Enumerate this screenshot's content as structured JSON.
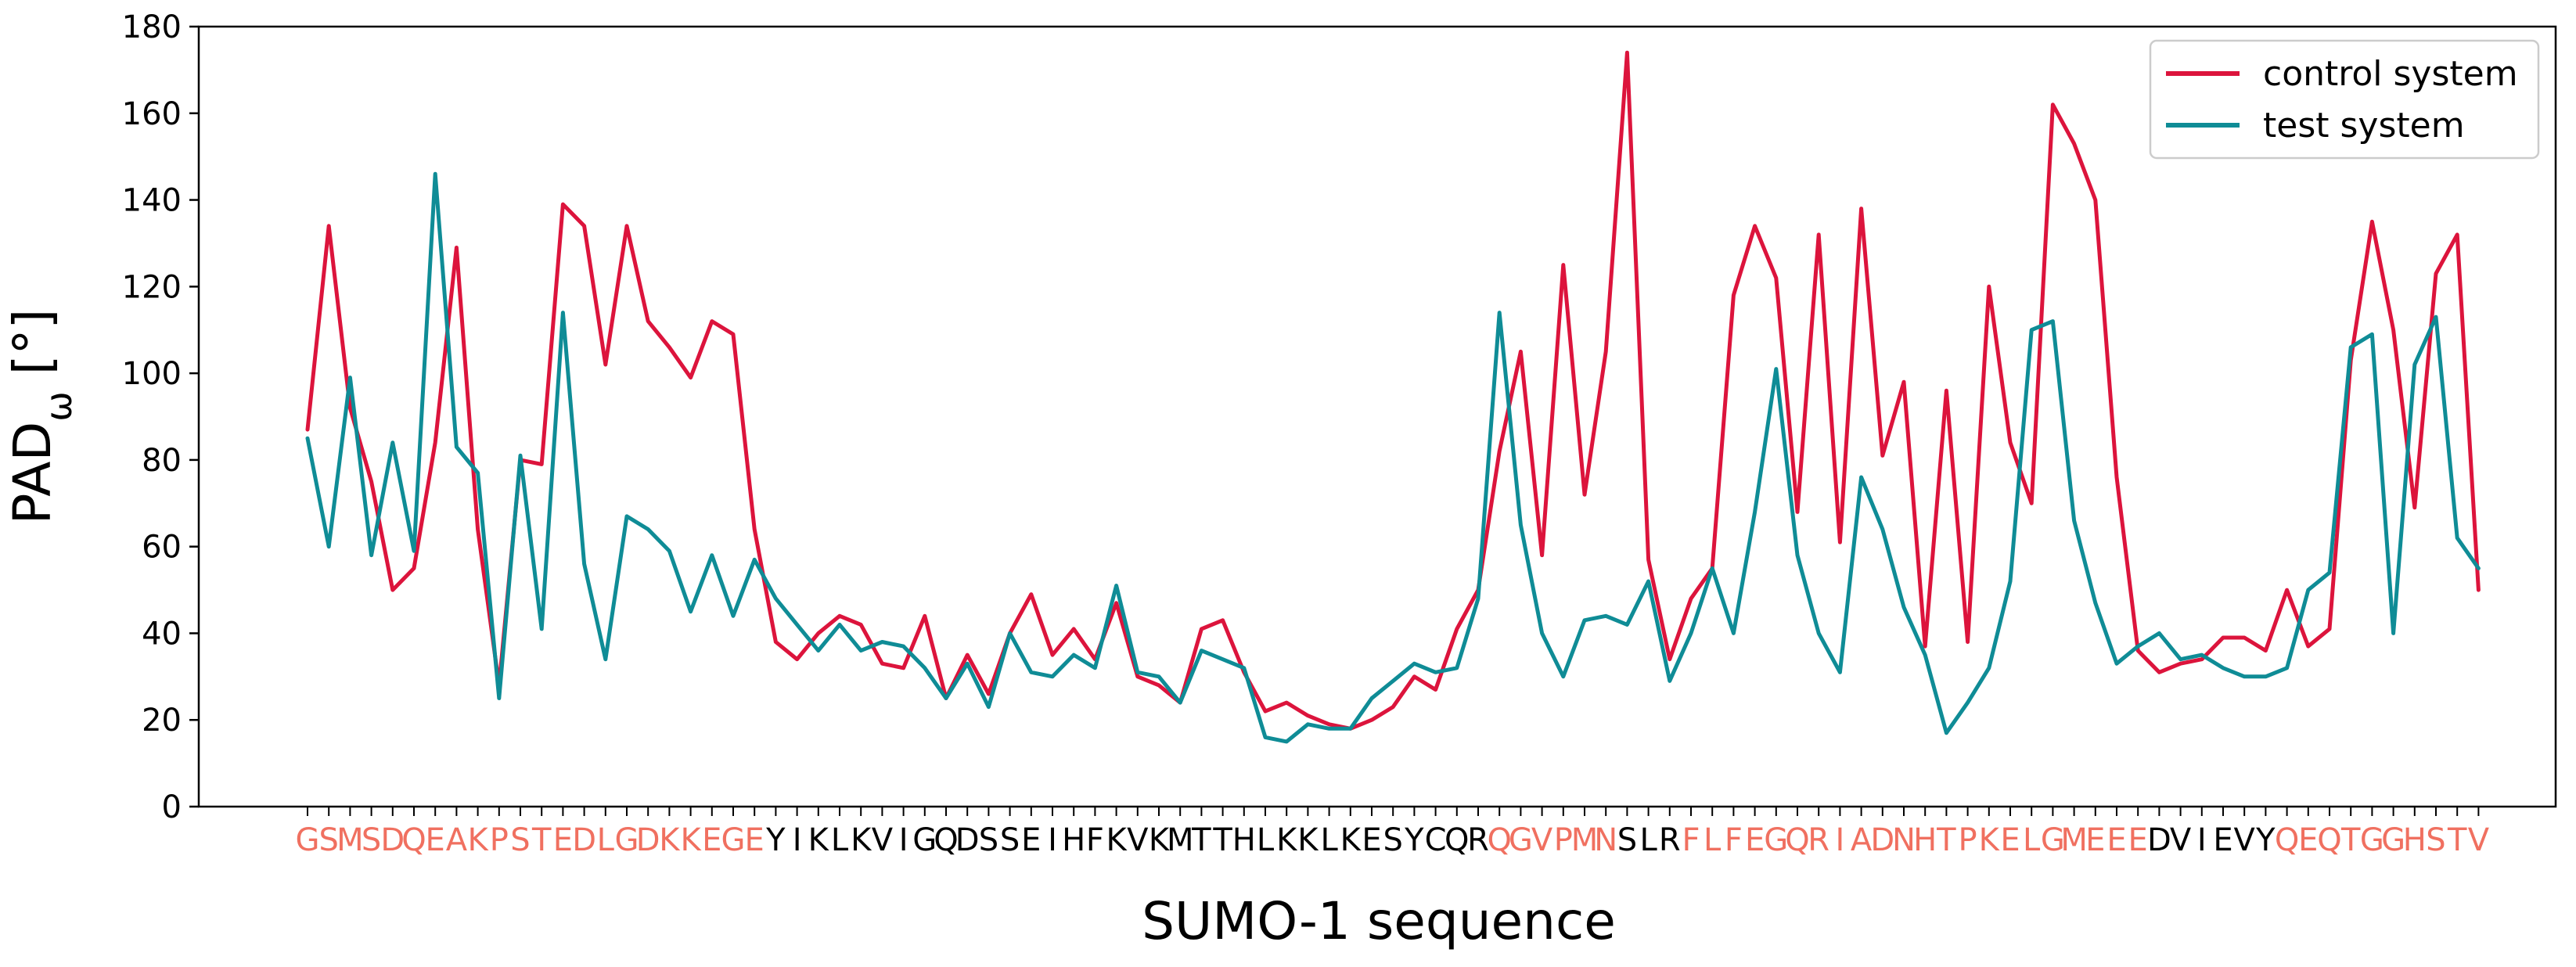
{
  "chart_data": {
    "type": "line",
    "xlabel": "SUMO-1 sequence",
    "ylabel_main": "PAD",
    "ylabel_sub": "ω",
    "ylabel_unit": " [°]",
    "ylim": [
      0,
      180
    ],
    "yticks": [
      0,
      20,
      40,
      60,
      80,
      100,
      120,
      140,
      160,
      180
    ],
    "grid": false,
    "legend_position": "top-right",
    "highlight_color": "#f07060",
    "normal_color": "#000000",
    "sequence": [
      {
        "res": "G",
        "hl": true
      },
      {
        "res": "S",
        "hl": true
      },
      {
        "res": "M",
        "hl": true
      },
      {
        "res": "S",
        "hl": true
      },
      {
        "res": "D",
        "hl": true
      },
      {
        "res": "Q",
        "hl": true
      },
      {
        "res": "E",
        "hl": true
      },
      {
        "res": "A",
        "hl": true
      },
      {
        "res": "K",
        "hl": true
      },
      {
        "res": "P",
        "hl": true
      },
      {
        "res": "S",
        "hl": true
      },
      {
        "res": "T",
        "hl": true
      },
      {
        "res": "E",
        "hl": true
      },
      {
        "res": "D",
        "hl": true
      },
      {
        "res": "L",
        "hl": true
      },
      {
        "res": "G",
        "hl": true
      },
      {
        "res": "D",
        "hl": true
      },
      {
        "res": "K",
        "hl": true
      },
      {
        "res": "K",
        "hl": true
      },
      {
        "res": "E",
        "hl": true
      },
      {
        "res": "G",
        "hl": true
      },
      {
        "res": "E",
        "hl": true
      },
      {
        "res": "Y",
        "hl": false
      },
      {
        "res": "I",
        "hl": false
      },
      {
        "res": "K",
        "hl": false
      },
      {
        "res": "L",
        "hl": false
      },
      {
        "res": "K",
        "hl": false
      },
      {
        "res": "V",
        "hl": false
      },
      {
        "res": "I",
        "hl": false
      },
      {
        "res": "G",
        "hl": false
      },
      {
        "res": "Q",
        "hl": false
      },
      {
        "res": "D",
        "hl": false
      },
      {
        "res": "S",
        "hl": false
      },
      {
        "res": "S",
        "hl": false
      },
      {
        "res": "E",
        "hl": false
      },
      {
        "res": "I",
        "hl": false
      },
      {
        "res": "H",
        "hl": false
      },
      {
        "res": "F",
        "hl": false
      },
      {
        "res": "K",
        "hl": false
      },
      {
        "res": "V",
        "hl": false
      },
      {
        "res": "K",
        "hl": false
      },
      {
        "res": "M",
        "hl": false
      },
      {
        "res": "T",
        "hl": false
      },
      {
        "res": "T",
        "hl": false
      },
      {
        "res": "H",
        "hl": false
      },
      {
        "res": "L",
        "hl": false
      },
      {
        "res": "K",
        "hl": false
      },
      {
        "res": "K",
        "hl": false
      },
      {
        "res": "L",
        "hl": false
      },
      {
        "res": "K",
        "hl": false
      },
      {
        "res": "E",
        "hl": false
      },
      {
        "res": "S",
        "hl": false
      },
      {
        "res": "Y",
        "hl": false
      },
      {
        "res": "C",
        "hl": false
      },
      {
        "res": "Q",
        "hl": false
      },
      {
        "res": "R",
        "hl": false
      },
      {
        "res": "Q",
        "hl": true
      },
      {
        "res": "G",
        "hl": true
      },
      {
        "res": "V",
        "hl": true
      },
      {
        "res": "P",
        "hl": true
      },
      {
        "res": "M",
        "hl": true
      },
      {
        "res": "N",
        "hl": true
      },
      {
        "res": "S",
        "hl": false
      },
      {
        "res": "L",
        "hl": false
      },
      {
        "res": "R",
        "hl": false
      },
      {
        "res": "F",
        "hl": true
      },
      {
        "res": "L",
        "hl": true
      },
      {
        "res": "F",
        "hl": true
      },
      {
        "res": "E",
        "hl": true
      },
      {
        "res": "G",
        "hl": true
      },
      {
        "res": "Q",
        "hl": true
      },
      {
        "res": "R",
        "hl": true
      },
      {
        "res": "I",
        "hl": true
      },
      {
        "res": "A",
        "hl": true
      },
      {
        "res": "D",
        "hl": true
      },
      {
        "res": "N",
        "hl": true
      },
      {
        "res": "H",
        "hl": true
      },
      {
        "res": "T",
        "hl": true
      },
      {
        "res": "P",
        "hl": true
      },
      {
        "res": "K",
        "hl": true
      },
      {
        "res": "E",
        "hl": true
      },
      {
        "res": "L",
        "hl": true
      },
      {
        "res": "G",
        "hl": true
      },
      {
        "res": "M",
        "hl": true
      },
      {
        "res": "E",
        "hl": true
      },
      {
        "res": "E",
        "hl": true
      },
      {
        "res": "E",
        "hl": true
      },
      {
        "res": "D",
        "hl": false
      },
      {
        "res": "V",
        "hl": false
      },
      {
        "res": "I",
        "hl": false
      },
      {
        "res": "E",
        "hl": false
      },
      {
        "res": "V",
        "hl": false
      },
      {
        "res": "Y",
        "hl": false
      },
      {
        "res": "Q",
        "hl": true
      },
      {
        "res": "E",
        "hl": true
      },
      {
        "res": "Q",
        "hl": true
      },
      {
        "res": "T",
        "hl": true
      },
      {
        "res": "G",
        "hl": true
      },
      {
        "res": "G",
        "hl": true
      },
      {
        "res": "H",
        "hl": true
      },
      {
        "res": "S",
        "hl": true
      },
      {
        "res": "T",
        "hl": true
      },
      {
        "res": "V",
        "hl": true
      }
    ],
    "series": [
      {
        "name": "control system",
        "color": "#dc143c",
        "values": [
          87,
          134,
          92,
          75,
          50,
          55,
          84,
          129,
          64,
          28,
          80,
          79,
          139,
          134,
          102,
          134,
          112,
          106,
          99,
          112,
          109,
          64,
          38,
          34,
          40,
          44,
          42,
          33,
          32,
          44,
          25,
          35,
          26,
          40,
          49,
          35,
          41,
          34,
          47,
          30,
          28,
          24,
          41,
          43,
          31,
          22,
          24,
          21,
          19,
          18,
          20,
          23,
          30,
          27,
          41,
          50,
          82,
          105,
          58,
          125,
          72,
          105,
          174,
          57,
          34,
          48,
          55,
          118,
          134,
          122,
          68,
          132,
          61,
          138,
          81,
          98,
          37,
          96,
          38,
          120,
          84,
          70,
          162,
          153,
          140,
          76,
          36,
          31,
          33,
          34,
          39,
          39,
          36,
          50,
          37,
          41,
          103,
          135,
          110,
          69,
          123,
          132,
          50
        ]
      },
      {
        "name": "test system",
        "color": "#0f8c96",
        "values": [
          85,
          60,
          99,
          58,
          84,
          59,
          146,
          83,
          77,
          25,
          81,
          41,
          114,
          56,
          34,
          67,
          64,
          59,
          45,
          58,
          44,
          57,
          48,
          42,
          36,
          42,
          36,
          38,
          37,
          32,
          25,
          33,
          23,
          40,
          31,
          30,
          35,
          32,
          51,
          31,
          30,
          24,
          36,
          34,
          32,
          16,
          15,
          19,
          18,
          18,
          25,
          29,
          33,
          31,
          32,
          48,
          114,
          65,
          40,
          30,
          43,
          44,
          42,
          52,
          29,
          40,
          55,
          40,
          68,
          101,
          58,
          40,
          31,
          76,
          64,
          46,
          35,
          17,
          24,
          32,
          52,
          110,
          112,
          66,
          47,
          33,
          37,
          40,
          34,
          35,
          32,
          30,
          30,
          32,
          50,
          54,
          106,
          109,
          40,
          102,
          113,
          62,
          55
        ]
      }
    ]
  }
}
